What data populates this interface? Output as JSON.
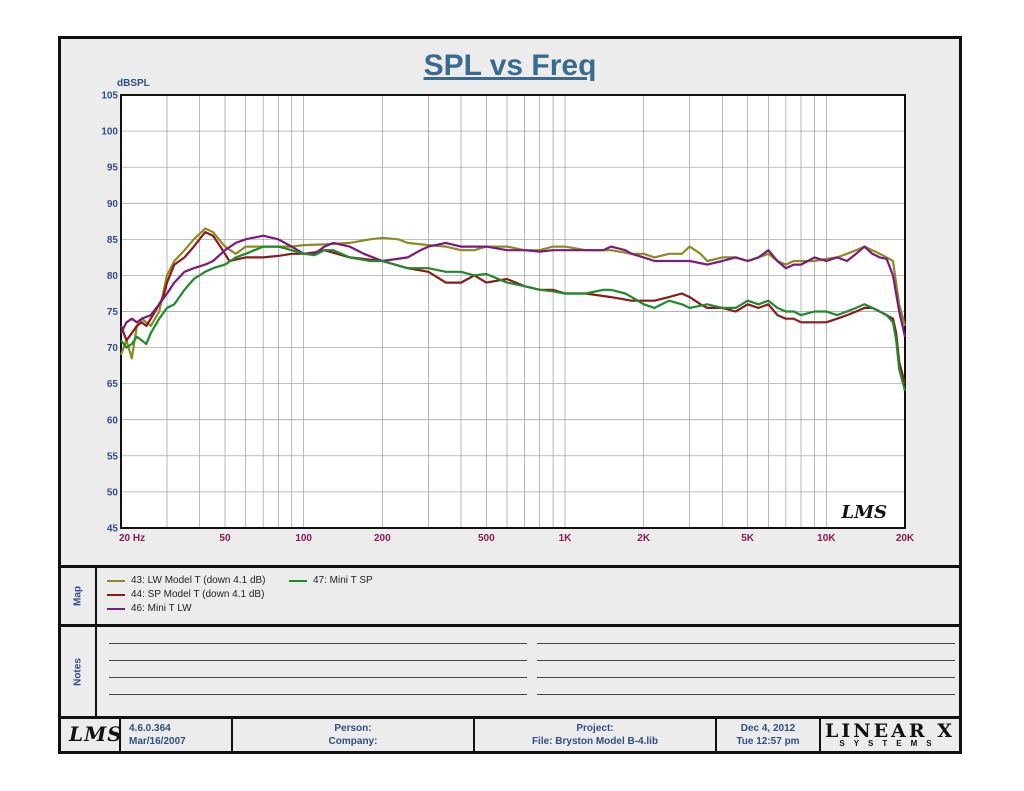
{
  "chart_data": {
    "type": "line",
    "title": "SPL vs Freq",
    "ylabel": "dBSPL",
    "xscale": "log",
    "xlim": [
      20,
      20000
    ],
    "ylim": [
      45,
      105
    ],
    "yticks": [
      45,
      50,
      55,
      60,
      65,
      70,
      75,
      80,
      85,
      90,
      95,
      100,
      105
    ],
    "xticks": [
      {
        "value": 20,
        "label": "20  Hz"
      },
      {
        "value": 50,
        "label": "50"
      },
      {
        "value": 100,
        "label": "100"
      },
      {
        "value": 200,
        "label": "200"
      },
      {
        "value": 500,
        "label": "500"
      },
      {
        "value": 1000,
        "label": "1K"
      },
      {
        "value": 2000,
        "label": "2K"
      },
      {
        "value": 5000,
        "label": "5K"
      },
      {
        "value": 10000,
        "label": "10K"
      },
      {
        "value": 20000,
        "label": "20K"
      }
    ],
    "grid": true,
    "series": [
      {
        "name": "43: LW Model T (down 4.1 dB)",
        "color": "#8f8a1f",
        "points": [
          [
            20,
            69
          ],
          [
            21,
            71
          ],
          [
            22,
            68.5
          ],
          [
            23,
            73
          ],
          [
            24,
            74
          ],
          [
            26,
            73
          ],
          [
            28,
            75
          ],
          [
            30,
            80
          ],
          [
            32,
            82
          ],
          [
            35,
            83.5
          ],
          [
            38,
            85
          ],
          [
            42,
            86.5
          ],
          [
            45,
            86
          ],
          [
            50,
            84
          ],
          [
            55,
            83
          ],
          [
            60,
            84
          ],
          [
            70,
            84
          ],
          [
            80,
            84
          ],
          [
            90,
            84
          ],
          [
            100,
            84.2
          ],
          [
            120,
            84.3
          ],
          [
            150,
            84.5
          ],
          [
            180,
            85
          ],
          [
            200,
            85.2
          ],
          [
            230,
            85
          ],
          [
            250,
            84.5
          ],
          [
            300,
            84.2
          ],
          [
            350,
            84
          ],
          [
            400,
            83.5
          ],
          [
            450,
            83.5
          ],
          [
            500,
            84
          ],
          [
            600,
            84
          ],
          [
            700,
            83.5
          ],
          [
            800,
            83.5
          ],
          [
            900,
            84
          ],
          [
            1000,
            84
          ],
          [
            1200,
            83.5
          ],
          [
            1500,
            83.5
          ],
          [
            1800,
            83
          ],
          [
            2000,
            83
          ],
          [
            2200,
            82.5
          ],
          [
            2500,
            83
          ],
          [
            2800,
            83
          ],
          [
            3000,
            84
          ],
          [
            3300,
            83
          ],
          [
            3500,
            82
          ],
          [
            4000,
            82.5
          ],
          [
            4500,
            82.5
          ],
          [
            5000,
            82
          ],
          [
            5500,
            82.5
          ],
          [
            6000,
            83
          ],
          [
            6500,
            82
          ],
          [
            7000,
            81.5
          ],
          [
            7500,
            82
          ],
          [
            8000,
            82
          ],
          [
            9000,
            82
          ],
          [
            10000,
            82.3
          ],
          [
            11000,
            82.5
          ],
          [
            12000,
            83
          ],
          [
            13000,
            83.5
          ],
          [
            14000,
            84
          ],
          [
            15000,
            83.5
          ],
          [
            16000,
            83
          ],
          [
            17000,
            82.5
          ],
          [
            18000,
            82
          ],
          [
            19000,
            76
          ],
          [
            20000,
            73
          ]
        ]
      },
      {
        "name": "44: SP Model T (down 4.1 dB)",
        "color": "#8b1a1a",
        "points": [
          [
            20,
            73
          ],
          [
            21,
            71
          ],
          [
            22,
            72
          ],
          [
            23,
            73
          ],
          [
            24,
            73.5
          ],
          [
            25,
            73
          ],
          [
            27,
            75
          ],
          [
            29,
            77
          ],
          [
            30,
            79
          ],
          [
            32,
            81.5
          ],
          [
            35,
            82.5
          ],
          [
            38,
            84
          ],
          [
            42,
            86
          ],
          [
            45,
            85.5
          ],
          [
            48,
            84
          ],
          [
            52,
            82
          ],
          [
            60,
            82.5
          ],
          [
            70,
            82.5
          ],
          [
            80,
            82.7
          ],
          [
            90,
            83
          ],
          [
            100,
            83
          ],
          [
            110,
            83.2
          ],
          [
            120,
            83.5
          ],
          [
            150,
            82.5
          ],
          [
            200,
            82
          ],
          [
            250,
            81
          ],
          [
            300,
            80.5
          ],
          [
            350,
            79
          ],
          [
            400,
            79
          ],
          [
            450,
            80
          ],
          [
            500,
            79
          ],
          [
            600,
            79.5
          ],
          [
            700,
            78.5
          ],
          [
            800,
            78
          ],
          [
            900,
            78
          ],
          [
            1000,
            77.5
          ],
          [
            1200,
            77.5
          ],
          [
            1500,
            77
          ],
          [
            1800,
            76.5
          ],
          [
            2000,
            76.5
          ],
          [
            2200,
            76.5
          ],
          [
            2500,
            77
          ],
          [
            2800,
            77.5
          ],
          [
            3000,
            77
          ],
          [
            3300,
            76
          ],
          [
            3500,
            75.5
          ],
          [
            4000,
            75.5
          ],
          [
            4500,
            75
          ],
          [
            5000,
            76
          ],
          [
            5500,
            75.5
          ],
          [
            6000,
            76
          ],
          [
            6500,
            74.5
          ],
          [
            7000,
            74
          ],
          [
            7500,
            74
          ],
          [
            8000,
            73.5
          ],
          [
            9000,
            73.5
          ],
          [
            10000,
            73.5
          ],
          [
            11000,
            74
          ],
          [
            12000,
            74.5
          ],
          [
            13000,
            75
          ],
          [
            14000,
            75.5
          ],
          [
            15000,
            75.5
          ],
          [
            16000,
            75
          ],
          [
            17000,
            74.5
          ],
          [
            18000,
            74
          ],
          [
            18500,
            72
          ],
          [
            19000,
            68
          ],
          [
            20000,
            65
          ]
        ]
      },
      {
        "name": "46: Mini T LW",
        "color": "#7a1a80",
        "points": [
          [
            20,
            72
          ],
          [
            21,
            73.5
          ],
          [
            22,
            74
          ],
          [
            23,
            73.5
          ],
          [
            24,
            74
          ],
          [
            26,
            74.5
          ],
          [
            28,
            76
          ],
          [
            30,
            77.5
          ],
          [
            32,
            79
          ],
          [
            35,
            80.5
          ],
          [
            38,
            81
          ],
          [
            42,
            81.5
          ],
          [
            45,
            82
          ],
          [
            50,
            83.5
          ],
          [
            55,
            84.5
          ],
          [
            60,
            85
          ],
          [
            70,
            85.5
          ],
          [
            80,
            85
          ],
          [
            90,
            84
          ],
          [
            100,
            83
          ],
          [
            110,
            83
          ],
          [
            120,
            84
          ],
          [
            130,
            84.5
          ],
          [
            150,
            84
          ],
          [
            170,
            83
          ],
          [
            200,
            82
          ],
          [
            250,
            82.5
          ],
          [
            280,
            83.5
          ],
          [
            300,
            84
          ],
          [
            350,
            84.5
          ],
          [
            400,
            84
          ],
          [
            450,
            84
          ],
          [
            500,
            84
          ],
          [
            600,
            83.5
          ],
          [
            700,
            83.5
          ],
          [
            800,
            83.3
          ],
          [
            900,
            83.5
          ],
          [
            1000,
            83.5
          ],
          [
            1200,
            83.5
          ],
          [
            1400,
            83.5
          ],
          [
            1500,
            84
          ],
          [
            1700,
            83.5
          ],
          [
            1800,
            83
          ],
          [
            2000,
            82.5
          ],
          [
            2200,
            82
          ],
          [
            2500,
            82
          ],
          [
            2800,
            82
          ],
          [
            3000,
            82
          ],
          [
            3500,
            81.5
          ],
          [
            4000,
            82
          ],
          [
            4500,
            82.5
          ],
          [
            5000,
            82
          ],
          [
            5500,
            82.5
          ],
          [
            6000,
            83.5
          ],
          [
            6500,
            82
          ],
          [
            7000,
            81
          ],
          [
            7500,
            81.5
          ],
          [
            8000,
            81.5
          ],
          [
            8500,
            82
          ],
          [
            9000,
            82.5
          ],
          [
            10000,
            82
          ],
          [
            11000,
            82.5
          ],
          [
            12000,
            82
          ],
          [
            13000,
            83
          ],
          [
            14000,
            84
          ],
          [
            15000,
            83
          ],
          [
            16000,
            82.5
          ],
          [
            17000,
            82.3
          ],
          [
            18000,
            80
          ],
          [
            19000,
            75
          ],
          [
            20000,
            71.5
          ]
        ]
      },
      {
        "name": "47: Mini T SP",
        "color": "#1e8a2a",
        "points": [
          [
            20,
            71
          ],
          [
            21,
            70
          ],
          [
            22,
            70.5
          ],
          [
            23,
            71.5
          ],
          [
            24,
            71
          ],
          [
            25,
            70.5
          ],
          [
            26,
            72
          ],
          [
            28,
            74
          ],
          [
            30,
            75.5
          ],
          [
            32,
            76
          ],
          [
            35,
            78
          ],
          [
            38,
            79.5
          ],
          [
            42,
            80.5
          ],
          [
            45,
            81
          ],
          [
            50,
            81.5
          ],
          [
            55,
            82.5
          ],
          [
            60,
            83
          ],
          [
            70,
            84
          ],
          [
            80,
            84
          ],
          [
            90,
            83.5
          ],
          [
            100,
            83
          ],
          [
            110,
            82.8
          ],
          [
            120,
            83.5
          ],
          [
            130,
            83.5
          ],
          [
            150,
            82.5
          ],
          [
            180,
            82
          ],
          [
            200,
            82
          ],
          [
            250,
            81
          ],
          [
            300,
            81
          ],
          [
            350,
            80.5
          ],
          [
            400,
            80.5
          ],
          [
            450,
            80
          ],
          [
            500,
            80.2
          ],
          [
            600,
            79
          ],
          [
            700,
            78.5
          ],
          [
            800,
            78
          ],
          [
            900,
            77.8
          ],
          [
            1000,
            77.5
          ],
          [
            1200,
            77.5
          ],
          [
            1400,
            78
          ],
          [
            1500,
            78
          ],
          [
            1700,
            77.5
          ],
          [
            1800,
            77
          ],
          [
            2000,
            76
          ],
          [
            2200,
            75.5
          ],
          [
            2500,
            76.5
          ],
          [
            2800,
            76
          ],
          [
            3000,
            75.5
          ],
          [
            3500,
            76
          ],
          [
            4000,
            75.5
          ],
          [
            4500,
            75.5
          ],
          [
            5000,
            76.5
          ],
          [
            5500,
            76
          ],
          [
            6000,
            76.5
          ],
          [
            6500,
            75.5
          ],
          [
            7000,
            75
          ],
          [
            7500,
            75
          ],
          [
            8000,
            74.5
          ],
          [
            9000,
            75
          ],
          [
            10000,
            75
          ],
          [
            11000,
            74.5
          ],
          [
            12000,
            75
          ],
          [
            13000,
            75.5
          ],
          [
            14000,
            76
          ],
          [
            15000,
            75.5
          ],
          [
            16000,
            75
          ],
          [
            17000,
            74.5
          ],
          [
            18000,
            73.5
          ],
          [
            18500,
            71
          ],
          [
            19000,
            67
          ],
          [
            20000,
            64
          ]
        ]
      }
    ]
  },
  "map": {
    "label": "Map",
    "legend": [
      {
        "text": "43: LW Model T (down 4.1 dB)",
        "color": "#8f8a1f"
      },
      {
        "text": "44: SP Model T (down 4.1 dB)",
        "color": "#8b1a1a"
      },
      {
        "text": "46: Mini T LW",
        "color": "#7a1a80"
      },
      {
        "text": "47: Mini T SP",
        "color": "#1e8a2a"
      }
    ]
  },
  "notes": {
    "label": "Notes"
  },
  "footer": {
    "logo": "LMS",
    "version": "4.6.0.364",
    "version_date": "Mar/16/2007",
    "person_label": "Person:",
    "company_label": "Company:",
    "project_label": "Project:",
    "file_label": "File: Bryston Model B-4.lib",
    "date": "Dec  4, 2012",
    "time": "Tue 12:57 pm",
    "brand_main": "LINEAR X",
    "brand_sub": "SYSTEMS"
  },
  "watermark": "LMS",
  "colors": {
    "axis_label": "#2e4f86",
    "x_tick": "#8b1a50",
    "title": "#3a6a8e"
  }
}
